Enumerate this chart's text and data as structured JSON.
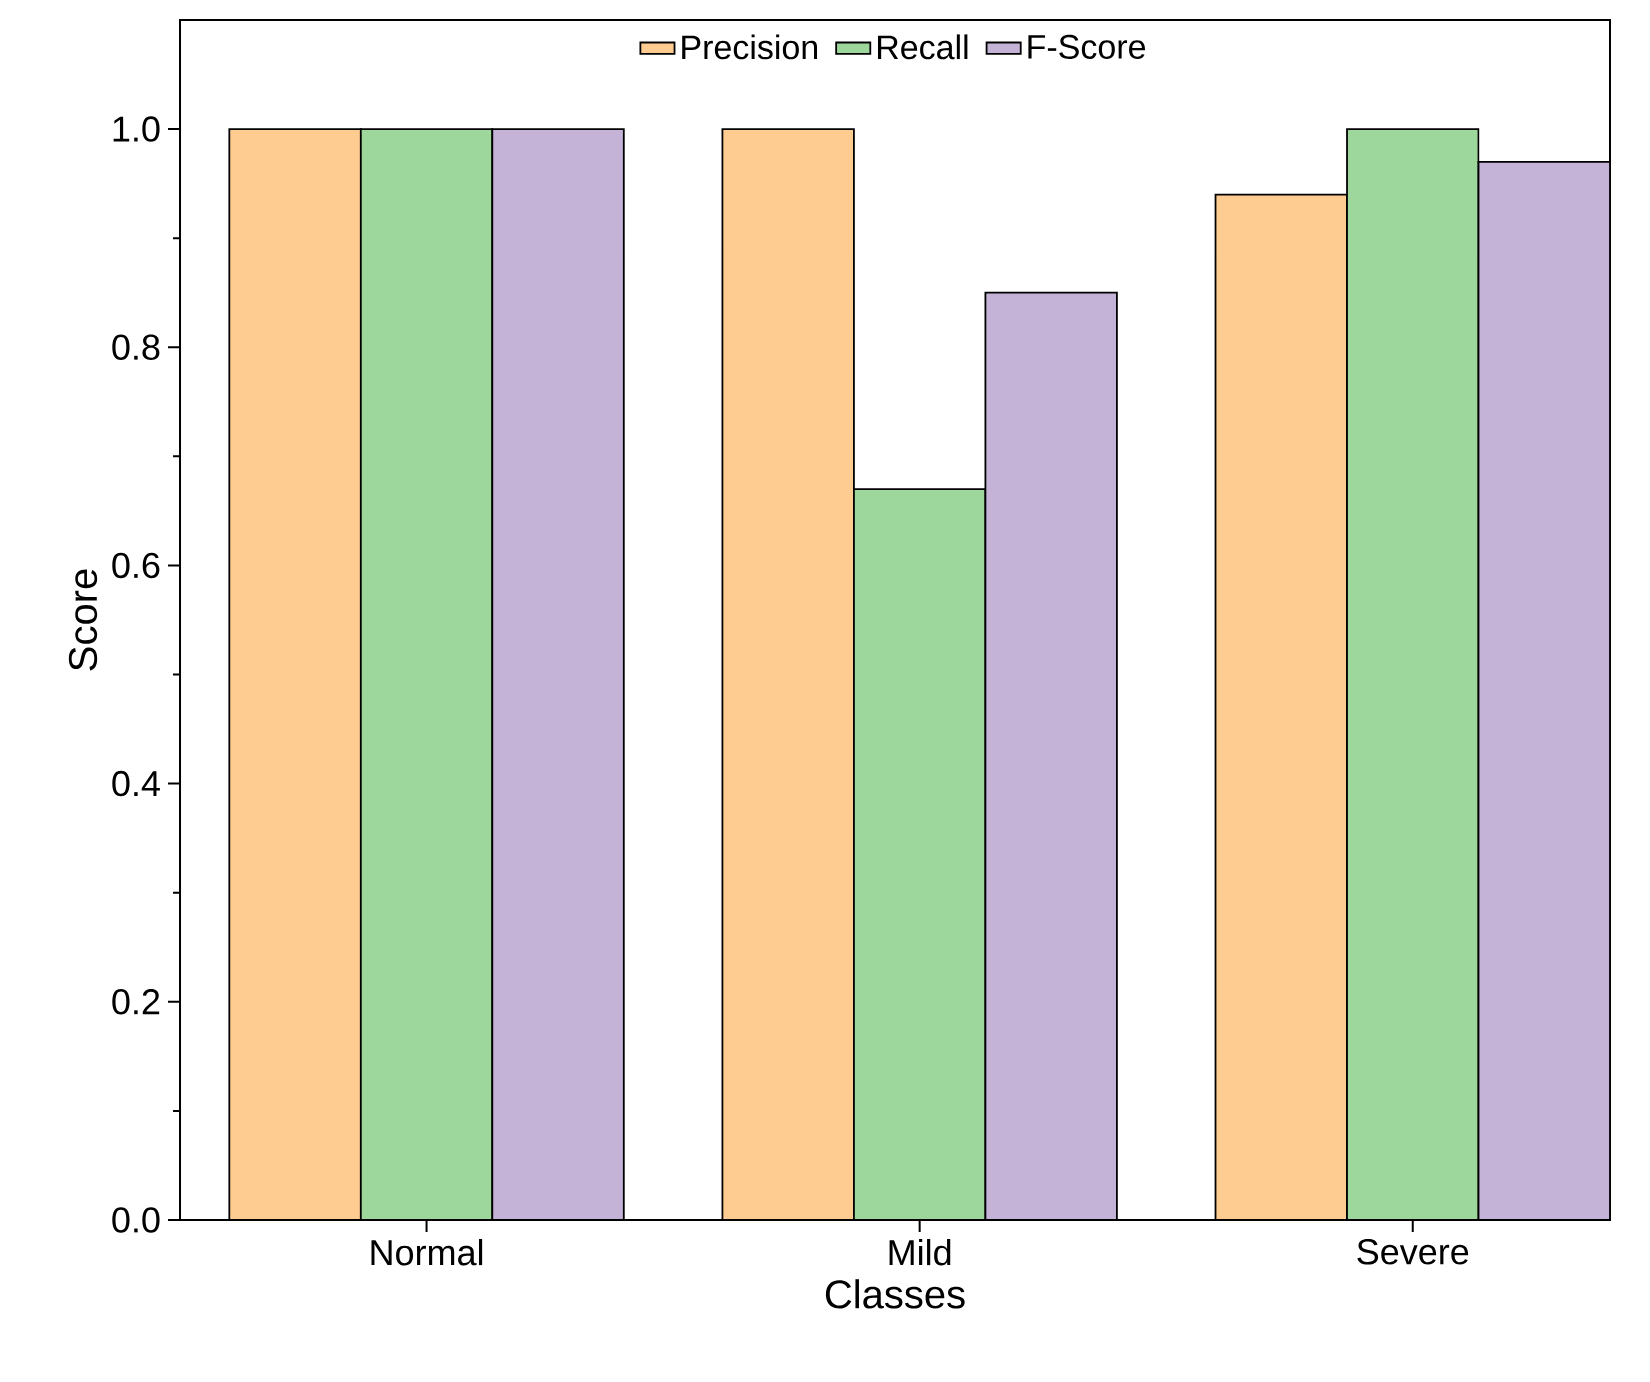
{
  "chart_data": {
    "type": "bar",
    "xlabel": "Classes",
    "ylabel": "Score",
    "categories": [
      "Normal",
      "Mild",
      "Severe"
    ],
    "series": [
      {
        "name": "Precision",
        "color": "#fecc91",
        "values": [
          1.0,
          1.0,
          0.94
        ]
      },
      {
        "name": "Recall",
        "color": "#9ed79b",
        "values": [
          1.0,
          0.67,
          1.0
        ]
      },
      {
        "name": "F-Score",
        "color": "#c5b3d7",
        "values": [
          1.0,
          0.85,
          0.97
        ]
      }
    ],
    "ylim": [
      0,
      1.1
    ],
    "yticks": [
      {
        "value": 0,
        "label": "0.0"
      },
      {
        "value": 0.2,
        "label": "0.2"
      },
      {
        "value": 0.4,
        "label": "0.4"
      },
      {
        "value": 0.6,
        "label": "0.6"
      },
      {
        "value": 0.8,
        "label": "0.8"
      },
      {
        "value": 1.0,
        "label": "1.0"
      }
    ],
    "legend": "top",
    "grid": false
  }
}
